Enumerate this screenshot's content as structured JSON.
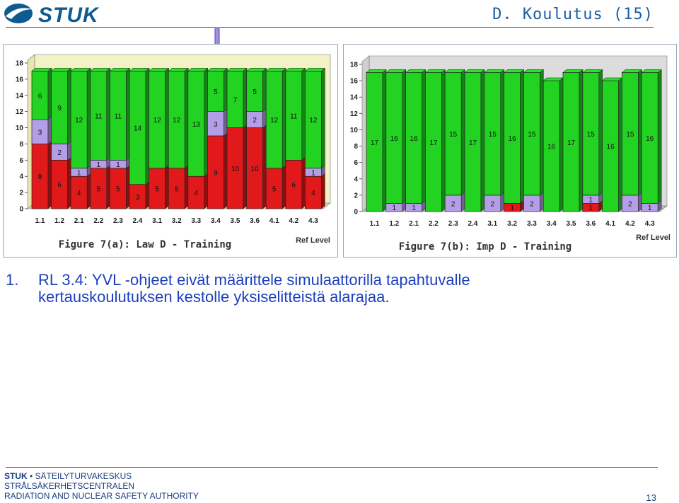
{
  "header": {
    "logo_text": "STUK",
    "slide_title": "D. Koulutus (15)"
  },
  "colors": {
    "accent": "#1c5ea1",
    "bar_red": "#e2191b",
    "bar_purple": "#b49ee8",
    "bar_green": "#22d322",
    "wall": "#f2f2c4",
    "arrow": "#a58ee0"
  },
  "chart_data": [
    {
      "type": "bar",
      "stacked": true,
      "title": "Figure 7(a): Law D - Training",
      "xlabel": "Ref Level",
      "ylim": [
        0,
        18
      ],
      "yticks": [
        0,
        2,
        4,
        6,
        8,
        10,
        12,
        14,
        16,
        18
      ],
      "categories": [
        "1.1",
        "1.2",
        "2.1",
        "2.2",
        "2.3",
        "2.4",
        "3.1",
        "3.2",
        "3.3",
        "3.4",
        "3.5",
        "3.6",
        "4.1",
        "4.2",
        "4.3"
      ],
      "highlight_category": "3.4",
      "series": [
        {
          "color": "#e2191b",
          "values": [
            8,
            6,
            4,
            5,
            5,
            3,
            5,
            5,
            4,
            9,
            10,
            10,
            5,
            6,
            4
          ]
        },
        {
          "color": "#b49ee8",
          "values": [
            3,
            2,
            1,
            1,
            1,
            0,
            0,
            0,
            0,
            3,
            0,
            2,
            0,
            0,
            1
          ]
        },
        {
          "color": "#22d322",
          "values": [
            6,
            9,
            12,
            11,
            11,
            14,
            12,
            12,
            13,
            5,
            7,
            5,
            12,
            11,
            12
          ]
        }
      ],
      "background": "wall-3d",
      "grid": false
    },
    {
      "type": "bar",
      "stacked": true,
      "title": "Figure 7(b): Imp D - Training",
      "xlabel": "Ref Level",
      "ylim": [
        0,
        18
      ],
      "yticks": [
        0,
        2,
        4,
        6,
        8,
        10,
        12,
        14,
        16,
        18
      ],
      "categories": [
        "1.1",
        "1.2",
        "2.1",
        "2.2",
        "2.3",
        "2.4",
        "3.1",
        "3.2",
        "3.3",
        "3.4",
        "3.5",
        "3.6",
        "4.1",
        "4.2",
        "4.3"
      ],
      "series": [
        {
          "color": "#e2191b",
          "values": [
            0,
            0,
            0,
            0,
            0,
            0,
            0,
            1,
            0,
            0,
            0,
            1,
            0,
            0,
            0
          ]
        },
        {
          "color": "#b49ee8",
          "values": [
            0,
            1,
            1,
            0,
            2,
            0,
            2,
            0,
            2,
            0,
            0,
            1,
            0,
            2,
            1
          ]
        },
        {
          "color": "#22d322",
          "values": [
            17,
            16,
            16,
            17,
            15,
            17,
            15,
            16,
            15,
            16,
            17,
            15,
            16,
            15,
            16
          ]
        }
      ],
      "background": "gray-3d",
      "grid": false
    }
  ],
  "body": {
    "bullet_num": "1.",
    "bullet_line1": "RL 3.4:  YVL -ohjeet eivät määrittele simulaattorilla tapahtuvalle",
    "bullet_line2": "kertauskoulutuksen kestolle yksiselitteistä alarajaa."
  },
  "footer": {
    "brand": "STUK",
    "line1_rest": " • SÄTEILYTURVAKESKUS",
    "line2": "STRÅLSÄKERHETSCENTRALEN",
    "line3": "RADIATION AND NUCLEAR SAFETY AUTHORITY",
    "page_number": "13"
  }
}
